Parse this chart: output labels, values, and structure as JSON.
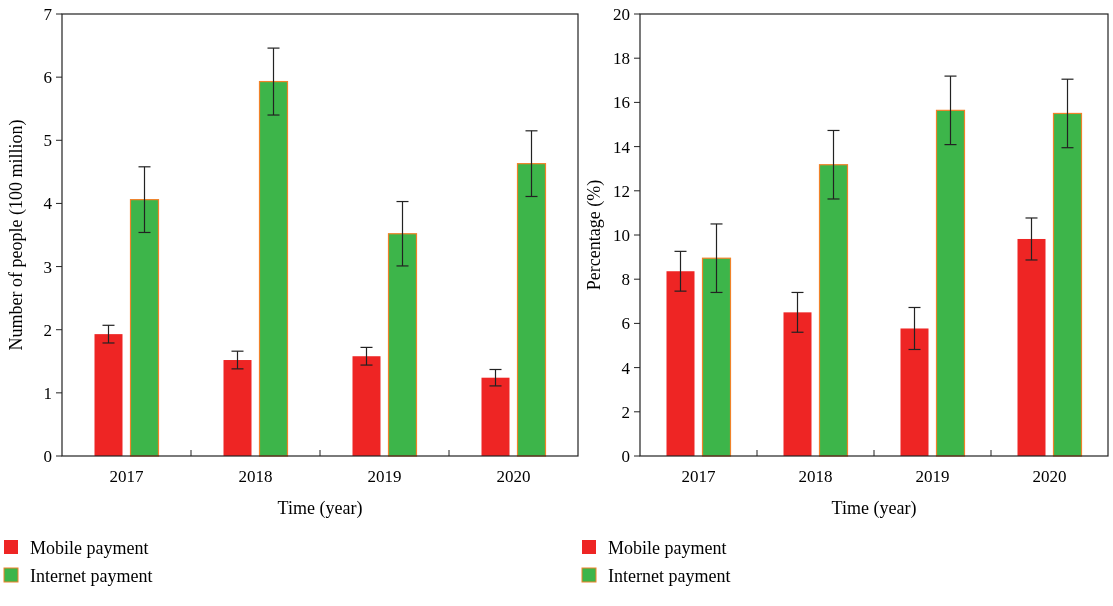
{
  "chart_data": [
    {
      "type": "bar",
      "xlabel": "Time (year)",
      "ylabel": "Number of people (100 million)",
      "categories": [
        "2017",
        "2018",
        "2019",
        "2020"
      ],
      "ylim": [
        0,
        7
      ],
      "yticks": [
        0,
        1,
        2,
        3,
        4,
        5,
        6,
        7
      ],
      "legend": "bottom left",
      "series": [
        {
          "name": "Mobile payment",
          "color": "#ee2524",
          "values": [
            1.93,
            1.52,
            1.58,
            1.24
          ],
          "errors": [
            0.14,
            0.14,
            0.14,
            0.13
          ]
        },
        {
          "name": "Internet payment",
          "color": "#3db54a",
          "values": [
            4.06,
            5.93,
            3.52,
            4.63
          ],
          "errors": [
            0.52,
            0.53,
            0.51,
            0.52
          ]
        }
      ]
    },
    {
      "type": "bar",
      "xlabel": "Time (year)",
      "ylabel": "Percentage (%)",
      "categories": [
        "2017",
        "2018",
        "2019",
        "2020"
      ],
      "ylim": [
        0,
        20
      ],
      "yticks": [
        0,
        2,
        4,
        6,
        8,
        10,
        12,
        14,
        16,
        18,
        20
      ],
      "legend": "bottom left",
      "series": [
        {
          "name": "Mobile payment",
          "color": "#ee2524",
          "values": [
            8.36,
            6.5,
            5.77,
            9.82
          ],
          "errors": [
            0.9,
            0.9,
            0.95,
            0.95
          ]
        },
        {
          "name": "Internet payment",
          "color": "#3db54a",
          "values": [
            8.95,
            13.18,
            15.64,
            15.5
          ],
          "errors": [
            1.55,
            1.55,
            1.55,
            1.55
          ]
        }
      ]
    }
  ]
}
